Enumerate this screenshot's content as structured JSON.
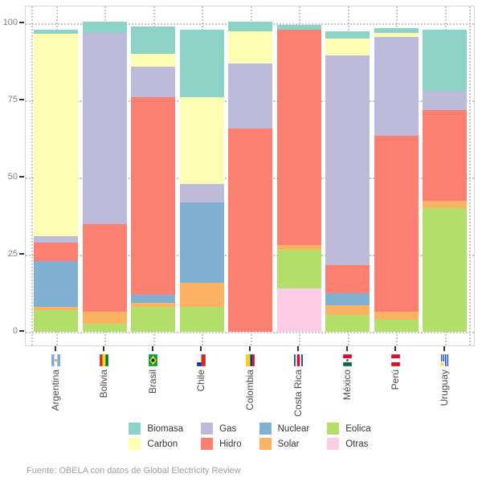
{
  "chart_data": {
    "type": "bar",
    "stacked": true,
    "unit": "%",
    "title": "",
    "xlabel": "",
    "ylabel": "",
    "categories": [
      "Argentina",
      "Bolivia",
      "Brasil",
      "Chile",
      "Colombia",
      "Costa Rica",
      "México",
      "Perú",
      "Uruguay"
    ],
    "series": [
      {
        "name": "Biomasa",
        "color": "#8DD3C7",
        "values": [
          1.5,
          3.5,
          9,
          22,
          3,
          1.5,
          2.5,
          1.5,
          20
        ]
      },
      {
        "name": "Carbon",
        "color": "#FFFFB3",
        "values": [
          65.5,
          0,
          4,
          28,
          10.5,
          0,
          5.5,
          1.5,
          0
        ]
      },
      {
        "name": "Gas",
        "color": "#BEBADA",
        "values": [
          2,
          62,
          10,
          6,
          21,
          0,
          68,
          32,
          6
        ]
      },
      {
        "name": "Hidro",
        "color": "#FB8072",
        "values": [
          6,
          28.5,
          64,
          0,
          66,
          70,
          9,
          57,
          29.5
        ]
      },
      {
        "name": "Nuclear",
        "color": "#80B1D3",
        "values": [
          15,
          0,
          2.5,
          26,
          0,
          0,
          4,
          0,
          0
        ]
      },
      {
        "name": "Solar",
        "color": "#FDB462",
        "values": [
          1,
          4,
          1.5,
          8,
          0,
          1.5,
          3,
          2.5,
          2.5
        ]
      },
      {
        "name": "Eolica",
        "color": "#B3DE69",
        "values": [
          7,
          2.5,
          8,
          8,
          0,
          12.5,
          5.5,
          4,
          40
        ]
      },
      {
        "name": "Otras",
        "color": "#FCCDE5",
        "values": [
          0,
          0,
          0,
          0,
          0,
          14,
          0,
          0,
          0
        ]
      }
    ],
    "stack_order_bottom_to_top": [
      "Otras",
      "Eolica",
      "Solar",
      "Nuclear",
      "Hidro",
      "Gas",
      "Carbon",
      "Biomasa"
    ],
    "y_ticks": [
      0,
      25,
      50,
      75,
      100
    ],
    "ylim": [
      -5,
      105.5
    ],
    "grid": "dotted",
    "legend_position": "bottom",
    "legend_columns": [
      [
        "Biomasa",
        "Carbon"
      ],
      [
        "Gas",
        "Hidro"
      ],
      [
        "Nuclear",
        "Solar"
      ],
      [
        "Eolica",
        "Otras"
      ]
    ],
    "source": "Fuente: OBELA con datos de Global Electricity Review"
  },
  "flags": {
    "Argentina": {
      "icon": "flag-argentina-icon",
      "type": "stripes-h",
      "colors": [
        "#74ACDF",
        "#FFFFFF",
        "#74ACDF"
      ],
      "weights": [
        1,
        1,
        1
      ],
      "emblem": "#F6B40E"
    },
    "Bolivia": {
      "icon": "flag-bolivia-icon",
      "type": "stripes-h",
      "colors": [
        "#D52B1E",
        "#F9E300",
        "#007934"
      ],
      "weights": [
        1,
        1,
        1
      ]
    },
    "Brasil": {
      "icon": "flag-brasil-icon",
      "type": "brasil",
      "field": "#009B3A",
      "diamond": "#FEDF00",
      "circle": "#002776"
    },
    "Chile": {
      "icon": "flag-chile-icon",
      "type": "chile",
      "white": "#FFFFFF",
      "red": "#D52B1E",
      "blue": "#0039A6"
    },
    "Colombia": {
      "icon": "flag-colombia-icon",
      "type": "stripes-h",
      "colors": [
        "#FCD116",
        "#003893",
        "#CE1126"
      ],
      "weights": [
        2,
        1,
        1
      ]
    },
    "Costa Rica": {
      "icon": "flag-costarica-icon",
      "type": "stripes-h",
      "colors": [
        "#002B7F",
        "#FFFFFF",
        "#CE1126",
        "#FFFFFF",
        "#002B7F"
      ],
      "weights": [
        1,
        1,
        2,
        1,
        1
      ]
    },
    "México": {
      "icon": "flag-mexico-icon",
      "type": "stripes-v",
      "colors": [
        "#006847",
        "#FFFFFF",
        "#CE1126"
      ],
      "weights": [
        1,
        1,
        1
      ],
      "emblem": "#8A6D3B"
    },
    "Perú": {
      "icon": "flag-peru-icon",
      "type": "stripes-v",
      "colors": [
        "#D91023",
        "#FFFFFF",
        "#D91023"
      ],
      "weights": [
        1,
        1,
        1
      ]
    },
    "Uruguay": {
      "icon": "flag-uruguay-icon",
      "type": "uruguay",
      "stripe": "#0038A8",
      "field": "#FFFFFF",
      "sun": "#FCD116"
    }
  }
}
